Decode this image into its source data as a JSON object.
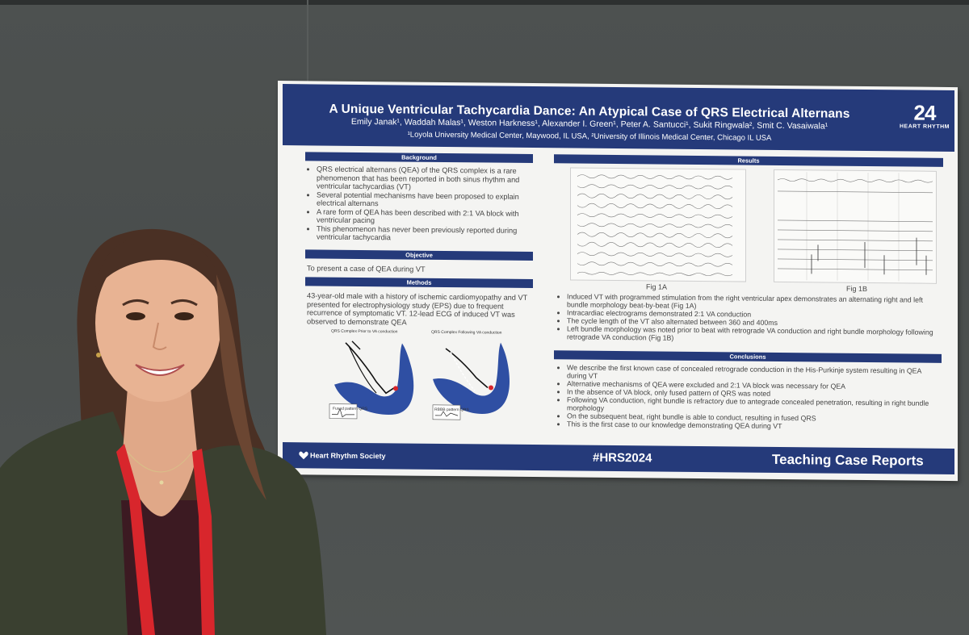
{
  "poster": {
    "title": "A Unique Ventricular Tachycardia Dance: An Atypical Case of QRS Electrical Alternans",
    "authors": "Emily Janak¹, Waddah Malas¹, Weston Harkness¹, Alexander I. Green¹, Peter A. Santucci¹, Sukit Ringwala², Smit C. Vasaiwala¹",
    "affiliations": "¹Loyola University Medical Center, Maywood, IL USA, ²University of Illinois Medical Center, Chicago IL USA",
    "logo_number": "24",
    "logo_text": "HEART RHYTHM",
    "background_heading": "Background",
    "background_items": [
      "QRS electrical alternans (QEA) of the QRS complex is a rare phenomenon that has been reported in both sinus rhythm and ventricular tachycardias (VT)",
      "Several potential mechanisms have been proposed to explain electrical alternans",
      "A rare form of QEA has been described with 2:1 VA block with ventricular pacing",
      "This phenomenon has never been previously reported during ventricular tachycardia"
    ],
    "objective_heading": "Objective",
    "objective_text": "To present a case of QEA during VT",
    "methods_heading": "Methods",
    "methods_text": "43-year-old male with a history of ischemic cardiomyopathy and VT presented for electrophysiology study (EPS) due to frequent recurrence of symptomatic VT. 12-lead ECG of induced VT was observed to demonstrate QEA",
    "diagram_left_caption": "QRS Complex Prior to VA conduction",
    "diagram_right_caption": "QRS Complex Following VA conduction",
    "diagram_left_box": "Fused pattern QRS",
    "diagram_right_box": "RBBB pattern QRS",
    "results_heading": "Results",
    "fig_1a_label": "Fig 1A",
    "fig_1b_label": "Fig 1B",
    "results_items": [
      "Induced VT with programmed stimulation from the right ventricular apex demonstrates an alternating right and left bundle morphology beat-by-beat (Fig 1A)",
      "Intracardiac electrograms demonstrated 2:1 VA conduction",
      "The cycle length of the VT also alternated between 360 and 400ms",
      "Left bundle morphology was noted prior to beat with retrograde VA conduction and right bundle morphology following retrograde VA conduction (Fig 1B)"
    ],
    "conclusions_heading": "Conclusions",
    "conclusions_items": [
      "We describe the first known case of concealed retrograde conduction in the His-Purkinje system resulting in QEA during VT",
      "Alternative mechanisms of QEA were excluded and 2:1 VA block was necessary for QEA",
      "In the absence of VA block, only fused pattern of QRS was noted",
      "Following VA conduction, right bundle is refractory due to antegrade concealed penetration, resulting in right bundle morphology",
      "On the subsequent beat, right bundle is able to conduct, resulting in fused QRS",
      "This is the first case to our knowledge demonstrating QEA during VT"
    ],
    "footer_left": "Heart Rhythm Society",
    "footer_hashtag": "#HRS2024",
    "footer_right": "Teaching Case Reports"
  },
  "colors": {
    "banner": "#253a7a",
    "wall": "#4d5150",
    "lanyard": "#d8262c",
    "jacket": "#3a4030"
  }
}
